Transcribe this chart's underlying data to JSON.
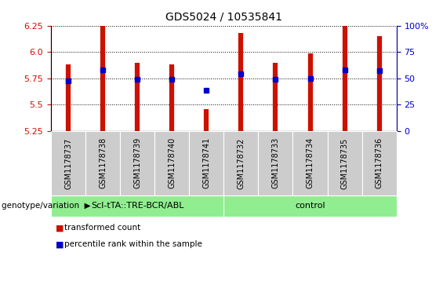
{
  "title": "GDS5024 / 10535841",
  "samples": [
    "GSM1178737",
    "GSM1178738",
    "GSM1178739",
    "GSM1178740",
    "GSM1178741",
    "GSM1178732",
    "GSM1178733",
    "GSM1178734",
    "GSM1178735",
    "GSM1178736"
  ],
  "transformed_count": [
    5.88,
    6.25,
    5.9,
    5.88,
    5.46,
    6.18,
    5.9,
    5.99,
    6.25,
    6.15
  ],
  "percentile_rank": [
    5.73,
    5.83,
    5.74,
    5.74,
    5.64,
    5.79,
    5.74,
    5.75,
    5.83,
    5.82
  ],
  "ylim_left": [
    5.25,
    6.25
  ],
  "ylim_right": [
    0,
    100
  ],
  "yticks_left": [
    5.25,
    5.5,
    5.75,
    6.0,
    6.25
  ],
  "yticks_right": [
    0,
    25,
    50,
    75,
    100
  ],
  "bar_color": "#CC1100",
  "dot_color": "#0000CC",
  "background_color": "#ffffff",
  "sample_box_color": "#cccccc",
  "group1_color": "#90EE90",
  "group2_color": "#90EE90",
  "group1_label": "Scl-tTA::TRE-BCR/ABL",
  "group2_label": "control",
  "group1_count": 5,
  "group2_count": 5,
  "genotype_label": "genotype/variation",
  "legend_red_label": "transformed count",
  "legend_blue_label": "percentile rank within the sample",
  "title_fontsize": 10,
  "tick_fontsize": 8,
  "sample_fontsize": 7,
  "group_fontsize": 8,
  "legend_fontsize": 7.5,
  "genotype_fontsize": 7.5
}
